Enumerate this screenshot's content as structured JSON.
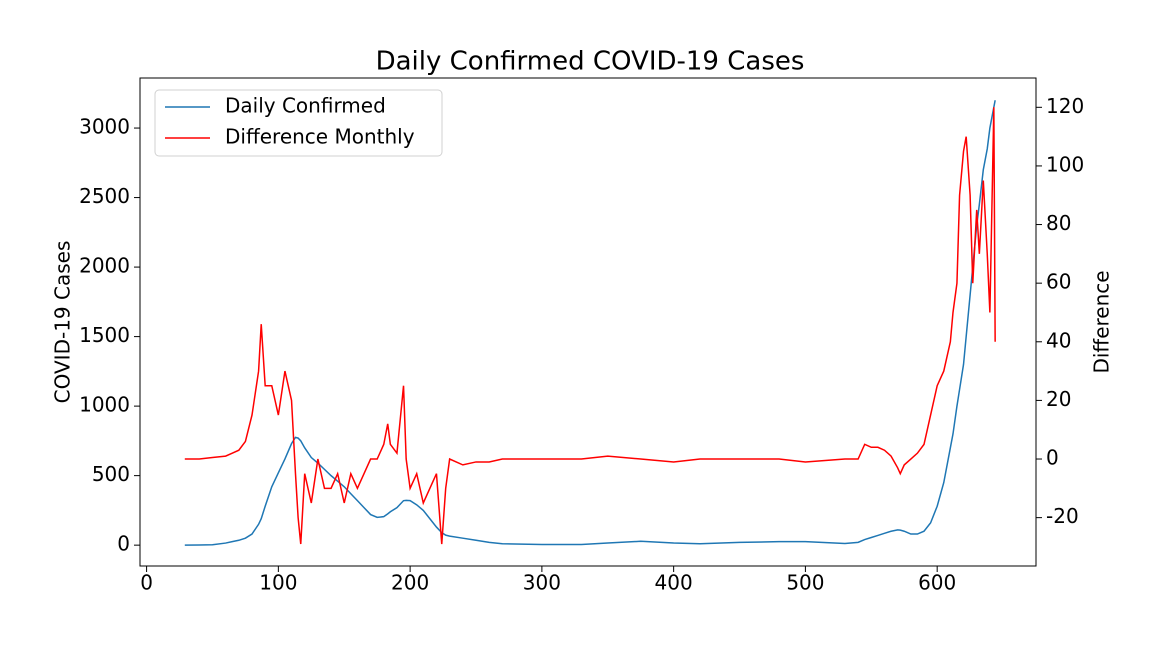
{
  "chart_data": {
    "type": "line",
    "title": "Daily Confirmed COVID-19 Cases",
    "y_label": "COVID-19 Cases",
    "y2_label": "Difference",
    "x": [
      29,
      40,
      50,
      60,
      65,
      70,
      75,
      80,
      85,
      87,
      90,
      95,
      100,
      105,
      110,
      113,
      115,
      117,
      120,
      125,
      130,
      135,
      140,
      145,
      150,
      155,
      160,
      165,
      170,
      175,
      180,
      183,
      185,
      190,
      195,
      197,
      200,
      205,
      210,
      215,
      220,
      224,
      227,
      230,
      240,
      250,
      260,
      270,
      300,
      330,
      350,
      375,
      400,
      420,
      450,
      480,
      500,
      530,
      540,
      545,
      550,
      555,
      560,
      565,
      570,
      572,
      575,
      580,
      585,
      590,
      595,
      600,
      605,
      610,
      612,
      615,
      617,
      620,
      622,
      625,
      627,
      630,
      632,
      635,
      638,
      640,
      643,
      644
    ],
    "series": [
      {
        "name": "Daily Confirmed",
        "color": "#1f77b4",
        "axis": "y",
        "values": [
          0,
          1,
          3,
          15,
          25,
          35,
          50,
          80,
          150,
          190,
          280,
          420,
          520,
          620,
          730,
          775,
          770,
          750,
          700,
          630,
          590,
          545,
          500,
          460,
          420,
          370,
          320,
          270,
          220,
          200,
          205,
          225,
          240,
          270,
          320,
          322,
          320,
          290,
          250,
          190,
          130,
          90,
          72,
          65,
          50,
          35,
          20,
          10,
          5,
          5,
          15,
          28,
          15,
          10,
          20,
          25,
          25,
          12,
          20,
          40,
          55,
          70,
          85,
          100,
          110,
          108,
          100,
          80,
          80,
          100,
          160,
          280,
          450,
          700,
          800,
          1000,
          1120,
          1300,
          1500,
          1800,
          2000,
          2300,
          2450,
          2700,
          2850,
          3000,
          3150,
          3200
        ]
      },
      {
        "name": "Difference Monthly",
        "color": "#ff0000",
        "axis": "y2",
        "values": [
          0,
          0,
          0.5,
          1,
          2,
          3,
          6,
          15,
          30,
          46,
          25,
          25,
          15,
          30,
          20,
          -5,
          -20,
          -29,
          -5,
          -15,
          0,
          -10,
          -10,
          -5,
          -15,
          -5,
          -10,
          -5,
          0,
          0,
          5,
          12,
          5,
          2,
          25,
          0,
          -10,
          -5,
          -15,
          -10,
          -5,
          -29,
          -10,
          0,
          -2,
          -1,
          -1,
          0,
          0,
          0,
          1,
          0,
          -1,
          0,
          0,
          0,
          -1,
          0,
          0,
          5,
          4,
          4,
          3,
          1,
          -3,
          -5,
          -2,
          0,
          2,
          5,
          15,
          25,
          30,
          40,
          50,
          60,
          90,
          105,
          110,
          90,
          60,
          85,
          70,
          95,
          70,
          50,
          120,
          40
        ]
      }
    ],
    "xlim": [
      -5,
      675
    ],
    "xticks": [
      0,
      100,
      200,
      300,
      400,
      500,
      600
    ],
    "ylim": [
      -150,
      3360
    ],
    "yticks": [
      0,
      500,
      1000,
      1500,
      2000,
      2500,
      3000
    ],
    "y2lim": [
      -36.5,
      130
    ],
    "y2ticks": [
      -20,
      0,
      20,
      40,
      60,
      80,
      100,
      120
    ],
    "legend": "upper left"
  }
}
